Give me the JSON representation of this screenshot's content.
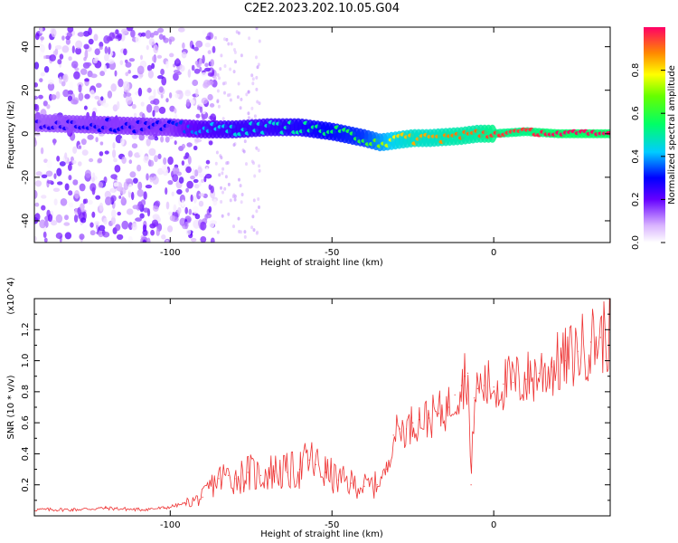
{
  "title": "C2E2.2023.202.10.05.G04",
  "colors": {
    "snr_line": "#ee3333",
    "axis": "#000000"
  },
  "chart_data": [
    {
      "type": "heatmap",
      "xlabel": "Height of straight line (km)",
      "ylabel": "Frequency (Hz)",
      "xlim": [
        -142,
        36
      ],
      "ylim": [
        -50,
        49
      ],
      "x_ticks": [
        -100,
        -50,
        0
      ],
      "x_tick_labels": [
        "-100",
        "-50",
        "0"
      ],
      "y_ticks": [
        -40,
        -20,
        0,
        20,
        40
      ],
      "y_tick_labels": [
        "-40",
        "-20",
        "0",
        "20",
        "40"
      ],
      "colorbar": {
        "label": "Normalized spectral amplitude",
        "range": [
          0,
          1
        ],
        "ticks": [
          0.0,
          0.2,
          0.4,
          0.6,
          0.8
        ],
        "tick_labels": [
          "0.0",
          "0.2",
          "0.4",
          "0.6",
          "0.8"
        ]
      },
      "ridge": {
        "x": [
          -142,
          -120,
          -100,
          -90,
          -80,
          -70,
          -60,
          -50,
          -40,
          -35,
          -30,
          -25,
          -20,
          -10,
          -5,
          0,
          10,
          20,
          36
        ],
        "frequency": [
          5,
          4,
          3,
          2,
          2,
          3,
          3,
          1,
          -2,
          -4,
          -3,
          -2,
          -2,
          -1,
          0,
          0,
          1,
          0,
          0
        ],
        "amplitude": [
          0.25,
          0.3,
          0.3,
          0.4,
          0.45,
          0.45,
          0.5,
          0.55,
          0.6,
          0.7,
          0.8,
          0.85,
          0.85,
          0.9,
          0.9,
          0.95,
          0.95,
          1.0,
          1.0
        ]
      }
    },
    {
      "type": "line",
      "xlabel": "Height of straight line (km)",
      "ylabel": "SNR (10 * v/v)",
      "y_multiplier": "(x10^4)",
      "xlim": [
        -142,
        36
      ],
      "ylim": [
        0,
        14000
      ],
      "x_ticks": [
        -100,
        -50,
        0
      ],
      "x_tick_labels": [
        "-100",
        "-50",
        "0"
      ],
      "y_ticks": [
        2000,
        4000,
        6000,
        8000,
        10000,
        12000
      ],
      "y_tick_labels": [
        "0.2",
        "0.4",
        "0.6",
        "0.8",
        "1.0",
        "1.2"
      ],
      "series": [
        {
          "x": [
            -142,
            -130,
            -120,
            -110,
            -102,
            -95,
            -90,
            -88,
            -85,
            -82,
            -80,
            -76,
            -72,
            -68,
            -64,
            -60,
            -57,
            -55,
            -52,
            -48,
            -44,
            -40,
            -36,
            -33,
            -31,
            -29,
            -27,
            -25,
            -23,
            -20,
            -17,
            -14,
            -12,
            -10,
            -9,
            -8,
            -7,
            -6,
            -5,
            -3,
            0,
            3,
            6,
            10,
            14,
            18,
            22,
            26,
            30,
            33,
            36
          ],
          "y": [
            400,
            400,
            500,
            400,
            500,
            800,
            1200,
            1800,
            2400,
            2600,
            2400,
            2800,
            2600,
            2900,
            2800,
            3000,
            3600,
            3300,
            2800,
            2300,
            2100,
            1900,
            2000,
            3000,
            5200,
            5600,
            5600,
            6000,
            6200,
            6300,
            6600,
            7000,
            7800,
            8400,
            9000,
            9200,
            2000,
            7600,
            8200,
            8400,
            8300,
            8500,
            8600,
            8800,
            9200,
            9600,
            10000,
            10600,
            11200,
            11500,
            11800
          ]
        }
      ]
    }
  ]
}
